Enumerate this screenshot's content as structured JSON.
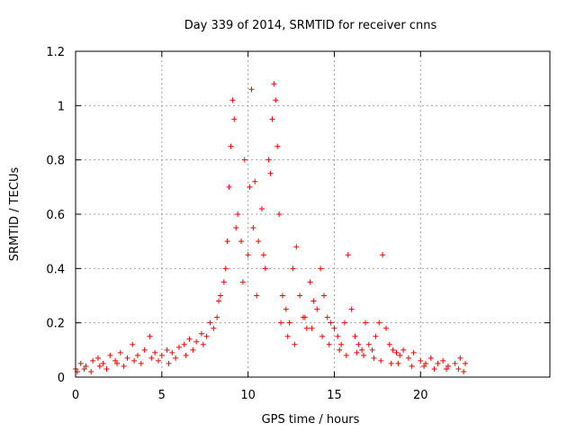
{
  "chart_data": {
    "type": "scatter",
    "title": "Day 339 of 2014, SRMTID for receiver cnns",
    "xlabel": "GPS time / hours",
    "ylabel": "SRMTID / TECUs",
    "xlim": [
      0,
      27.5
    ],
    "ylim": [
      0,
      1.2
    ],
    "x_ticks": [
      0,
      5,
      10,
      15,
      20
    ],
    "x_tick_labels": [
      "0",
      "5",
      "10",
      "15",
      "20"
    ],
    "y_ticks": [
      0,
      0.2,
      0.4,
      0.6,
      0.8,
      1.0,
      1.2
    ],
    "y_tick_labels": [
      "0",
      "0.2",
      "0.4",
      "0.6",
      "0.8",
      "1",
      "1.2"
    ],
    "grid": true,
    "marker": "+",
    "color": "#ff0000",
    "series": [
      {
        "name": "SRMTID",
        "x": [
          0.0,
          0.3,
          0.6,
          1.0,
          1.3,
          1.6,
          2.0,
          2.3,
          2.6,
          3.0,
          3.3,
          3.6,
          4.0,
          4.3,
          4.6,
          5.0,
          5.3,
          5.6,
          6.0,
          6.3,
          6.6,
          7.0,
          7.3,
          7.6,
          8.0,
          8.2,
          8.4,
          8.6,
          8.8,
          8.9,
          9.0,
          9.1,
          9.2,
          9.4,
          9.6,
          9.8,
          10.0,
          10.1,
          10.2,
          10.3,
          10.4,
          10.6,
          10.8,
          11.0,
          11.2,
          11.4,
          11.5,
          11.6,
          11.7,
          11.8,
          12.0,
          12.2,
          12.4,
          12.6,
          12.8,
          13.0,
          13.2,
          13.4,
          13.6,
          13.8,
          14.0,
          14.2,
          14.4,
          14.6,
          14.8,
          15.0,
          15.2,
          15.4,
          15.6,
          15.8,
          16.0,
          16.2,
          16.4,
          16.6,
          16.8,
          17.0,
          17.2,
          17.4,
          17.6,
          17.8,
          18.0,
          18.2,
          18.4,
          18.6,
          18.8,
          19.0,
          19.3,
          19.6,
          20.0,
          20.3,
          20.6,
          21.0,
          21.3,
          21.6,
          22.0,
          22.3,
          22.6,
          0.1,
          0.5,
          0.9,
          1.4,
          1.8,
          2.4,
          2.8,
          3.4,
          3.8,
          4.4,
          4.8,
          5.4,
          5.8,
          6.4,
          6.8,
          7.4,
          7.8,
          8.3,
          8.7,
          9.3,
          9.7,
          10.5,
          10.9,
          11.3,
          11.9,
          12.3,
          12.7,
          13.3,
          13.7,
          14.3,
          14.7,
          15.3,
          15.7,
          16.3,
          16.7,
          17.3,
          17.7,
          18.3,
          18.7,
          19.5,
          20.2,
          20.8,
          21.5,
          22.2,
          22.5
        ],
        "y": [
          0.03,
          0.05,
          0.04,
          0.06,
          0.07,
          0.05,
          0.08,
          0.06,
          0.09,
          0.07,
          0.12,
          0.08,
          0.1,
          0.15,
          0.09,
          0.08,
          0.1,
          0.09,
          0.11,
          0.12,
          0.14,
          0.13,
          0.16,
          0.15,
          0.18,
          0.22,
          0.3,
          0.35,
          0.5,
          0.7,
          0.85,
          1.02,
          0.95,
          0.6,
          0.5,
          0.8,
          0.45,
          0.7,
          1.06,
          0.55,
          0.72,
          0.5,
          0.62,
          0.4,
          0.8,
          0.95,
          1.08,
          1.02,
          0.85,
          0.6,
          0.3,
          0.25,
          0.2,
          0.4,
          0.48,
          0.3,
          0.22,
          0.18,
          0.35,
          0.28,
          0.25,
          0.4,
          0.3,
          0.22,
          0.2,
          0.18,
          0.15,
          0.12,
          0.2,
          0.45,
          0.25,
          0.15,
          0.12,
          0.1,
          0.2,
          0.12,
          0.1,
          0.15,
          0.2,
          0.45,
          0.18,
          0.12,
          0.1,
          0.09,
          0.08,
          0.1,
          0.07,
          0.09,
          0.06,
          0.05,
          0.07,
          0.05,
          0.06,
          0.04,
          0.05,
          0.07,
          0.05,
          0.02,
          0.03,
          0.02,
          0.04,
          0.03,
          0.05,
          0.04,
          0.06,
          0.05,
          0.07,
          0.06,
          0.05,
          0.07,
          0.08,
          0.1,
          0.12,
          0.2,
          0.28,
          0.4,
          0.55,
          0.35,
          0.3,
          0.45,
          0.75,
          0.2,
          0.15,
          0.12,
          0.22,
          0.18,
          0.15,
          0.12,
          0.1,
          0.08,
          0.09,
          0.08,
          0.07,
          0.06,
          0.05,
          0.05,
          0.04,
          0.04,
          0.03,
          0.03,
          0.03,
          0.02
        ]
      }
    ]
  }
}
